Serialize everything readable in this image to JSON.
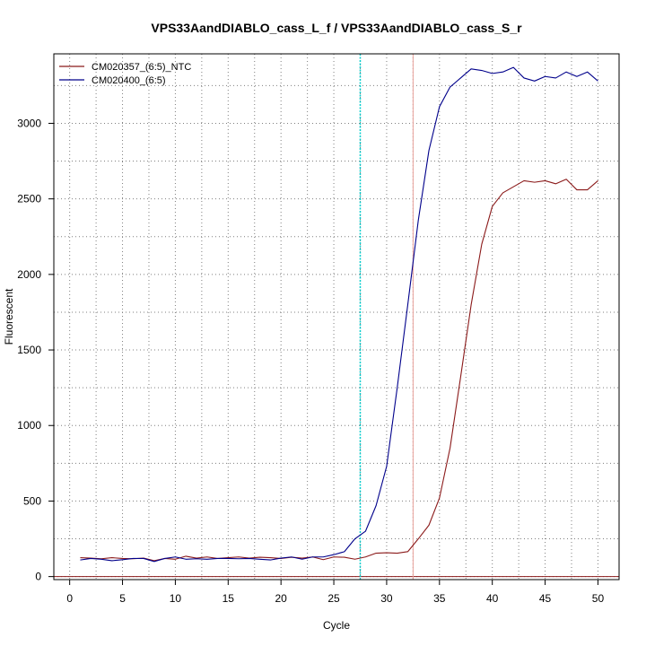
{
  "chart_data": {
    "type": "line",
    "title": "VPS33AandDIABLO_cass_L_f / VPS33AandDIABLO_cass_S_r",
    "xlabel": "Cycle",
    "ylabel": "Fluorescent",
    "xlim": [
      -1.5,
      52
    ],
    "ylim": [
      -20,
      3460
    ],
    "xticks": [
      0,
      5,
      10,
      15,
      20,
      25,
      30,
      35,
      40,
      45,
      50
    ],
    "yticks": [
      0,
      500,
      1000,
      1500,
      2000,
      2500,
      3000
    ],
    "x_minor_grid": [
      2.5,
      7.5,
      12.5,
      17.5,
      22.5,
      27.5,
      32.5,
      37.5,
      42.5,
      47.5
    ],
    "y_minor_grid": [
      250,
      750,
      1250,
      1750,
      2250,
      2750,
      3250
    ],
    "grid": true,
    "legend_position": "top-left",
    "vlines": [
      {
        "x": 27.5,
        "color": "#00cdcd",
        "style": "dotted"
      },
      {
        "x": 32.5,
        "color": "#e8a09a",
        "style": "solid"
      }
    ],
    "hlines": [
      {
        "y": 0,
        "color": "#8b1a1a",
        "style": "solid"
      }
    ],
    "x": [
      1,
      2,
      3,
      4,
      5,
      6,
      7,
      8,
      9,
      10,
      11,
      12,
      13,
      14,
      15,
      16,
      17,
      18,
      19,
      20,
      21,
      22,
      23,
      24,
      25,
      26,
      27,
      28,
      29,
      30,
      31,
      32,
      33,
      34,
      35,
      36,
      37,
      38,
      39,
      40,
      41,
      42,
      43,
      44,
      45,
      46,
      47,
      48,
      49,
      50
    ],
    "series": [
      {
        "name": "CM020357_(6:5)_NTC",
        "color": "#8b1a1a",
        "values": [
          125,
          122,
          118,
          125,
          120,
          118,
          122,
          105,
          120,
          115,
          135,
          122,
          130,
          120,
          125,
          130,
          122,
          128,
          125,
          120,
          128,
          122,
          130,
          112,
          130,
          128,
          115,
          130,
          155,
          158,
          155,
          165,
          250,
          340,
          520,
          850,
          1320,
          1800,
          2200,
          2450,
          2540,
          2580,
          2620,
          2610,
          2620,
          2600,
          2630,
          2560,
          2560,
          2620
        ]
      },
      {
        "name": "CM020400_(6:5)",
        "color": "#00008b",
        "values": [
          110,
          120,
          115,
          105,
          112,
          120,
          120,
          100,
          120,
          130,
          115,
          118,
          115,
          120,
          120,
          118,
          120,
          115,
          110,
          122,
          130,
          115,
          130,
          130,
          145,
          165,
          250,
          300,
          470,
          730,
          1250,
          1800,
          2360,
          2820,
          3110,
          3240,
          3300,
          3360,
          3350,
          3330,
          3340,
          3370,
          3300,
          3280,
          3310,
          3300,
          3340,
          3310,
          3340,
          3280
        ]
      }
    ]
  }
}
